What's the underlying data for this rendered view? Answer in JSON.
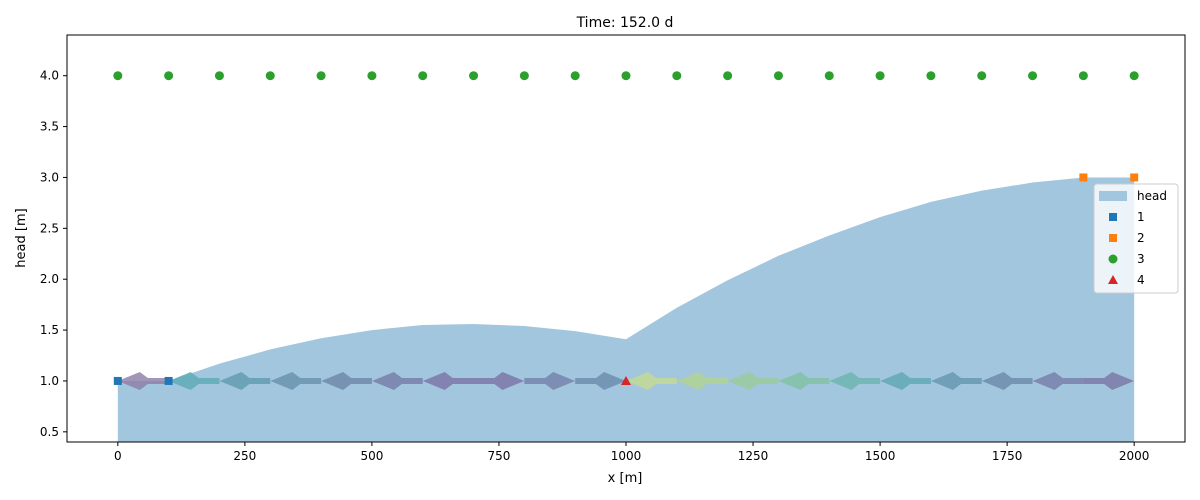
{
  "chart_data": {
    "type": "area",
    "title": "Time: 152.0 d",
    "xlabel": "x [m]",
    "ylabel": "head [m]",
    "xlim": [
      -100,
      2100
    ],
    "ylim": [
      0.4,
      4.4
    ],
    "xticks": [
      0,
      250,
      500,
      750,
      1000,
      1250,
      1500,
      1750,
      2000
    ],
    "xtick_labels": [
      "0",
      "250",
      "500",
      "750",
      "1000",
      "1250",
      "1500",
      "1750",
      "2000"
    ],
    "yticks": [
      0.5,
      1.0,
      1.5,
      2.0,
      2.5,
      3.0,
      3.5,
      4.0
    ],
    "ytick_labels": [
      "0.5",
      "1.0",
      "1.5",
      "2.0",
      "2.5",
      "3.0",
      "3.5",
      "4.0"
    ],
    "grid": false,
    "legend_position": "right",
    "head": {
      "name": "head",
      "color": "#a3c6df",
      "x": [
        0,
        100,
        200,
        300,
        400,
        500,
        600,
        700,
        800,
        900,
        1000,
        1100,
        1200,
        1300,
        1400,
        1500,
        1600,
        1700,
        1800,
        1900,
        2000
      ],
      "y": [
        1.0,
        1.0,
        1.17,
        1.31,
        1.42,
        1.5,
        1.55,
        1.56,
        1.54,
        1.49,
        1.41,
        1.72,
        1.99,
        2.23,
        2.43,
        2.61,
        2.76,
        2.87,
        2.95,
        3.0,
        3.0
      ]
    },
    "series": [
      {
        "name": "1",
        "marker": "square",
        "color": "#1f77b4",
        "x": [
          0,
          100
        ],
        "y": [
          1.0,
          1.0
        ]
      },
      {
        "name": "2",
        "marker": "square",
        "color": "#ff7f0e",
        "x": [
          1900,
          2000
        ],
        "y": [
          3.0,
          3.0
        ]
      },
      {
        "name": "3",
        "marker": "circle",
        "color": "#2ca02c",
        "x": [
          0,
          100,
          200,
          300,
          400,
          500,
          600,
          700,
          800,
          900,
          1000,
          1100,
          1200,
          1300,
          1400,
          1500,
          1600,
          1700,
          1800,
          1900,
          2000
        ],
        "y": [
          4.0,
          4.0,
          4.0,
          4.0,
          4.0,
          4.0,
          4.0,
          4.0,
          4.0,
          4.0,
          4.0,
          4.0,
          4.0,
          4.0,
          4.0,
          4.0,
          4.0,
          4.0,
          4.0,
          4.0,
          4.0
        ]
      },
      {
        "name": "4",
        "marker": "triangle",
        "color": "#d62728",
        "x": [
          1000
        ],
        "y": [
          1.0
        ]
      }
    ],
    "flow_arrows": [
      {
        "x0": 100,
        "x1": 0,
        "y": 1.0,
        "color": "#8c7ba6"
      },
      {
        "x0": 200,
        "x1": 100,
        "y": 1.0,
        "color": "#5aa9b3"
      },
      {
        "x0": 300,
        "x1": 200,
        "y": 1.0,
        "color": "#5e9aae"
      },
      {
        "x0": 400,
        "x1": 300,
        "y": 1.0,
        "color": "#6590ab"
      },
      {
        "x0": 500,
        "x1": 400,
        "y": 1.0,
        "color": "#6d84a8"
      },
      {
        "x0": 600,
        "x1": 500,
        "y": 1.0,
        "color": "#767aa6"
      },
      {
        "x0": 700,
        "x1": 600,
        "y": 1.0,
        "color": "#7b72a5"
      },
      {
        "x0": 700,
        "x1": 800,
        "y": 1.0,
        "color": "#7b72a5"
      },
      {
        "x0": 800,
        "x1": 900,
        "y": 1.0,
        "color": "#7280a8"
      },
      {
        "x0": 900,
        "x1": 1000,
        "y": 1.0,
        "color": "#6a8aab"
      },
      {
        "x0": 1100,
        "x1": 1000,
        "y": 1.0,
        "color": "#c4d98f"
      },
      {
        "x0": 1200,
        "x1": 1100,
        "y": 1.0,
        "color": "#b0d38f"
      },
      {
        "x0": 1300,
        "x1": 1200,
        "y": 1.0,
        "color": "#98ca99"
      },
      {
        "x0": 1400,
        "x1": 1300,
        "y": 1.0,
        "color": "#7fc0a3"
      },
      {
        "x0": 1500,
        "x1": 1400,
        "y": 1.0,
        "color": "#6ab3ae"
      },
      {
        "x0": 1600,
        "x1": 1500,
        "y": 1.0,
        "color": "#5ea6b2"
      },
      {
        "x0": 1700,
        "x1": 1600,
        "y": 1.0,
        "color": "#6196ad"
      },
      {
        "x0": 1800,
        "x1": 1700,
        "y": 1.0,
        "color": "#6a88aa"
      },
      {
        "x0": 1900,
        "x1": 1800,
        "y": 1.0,
        "color": "#757ca6"
      },
      {
        "x0": 1900,
        "x1": 2000,
        "y": 1.0,
        "color": "#7a74a5"
      }
    ]
  }
}
